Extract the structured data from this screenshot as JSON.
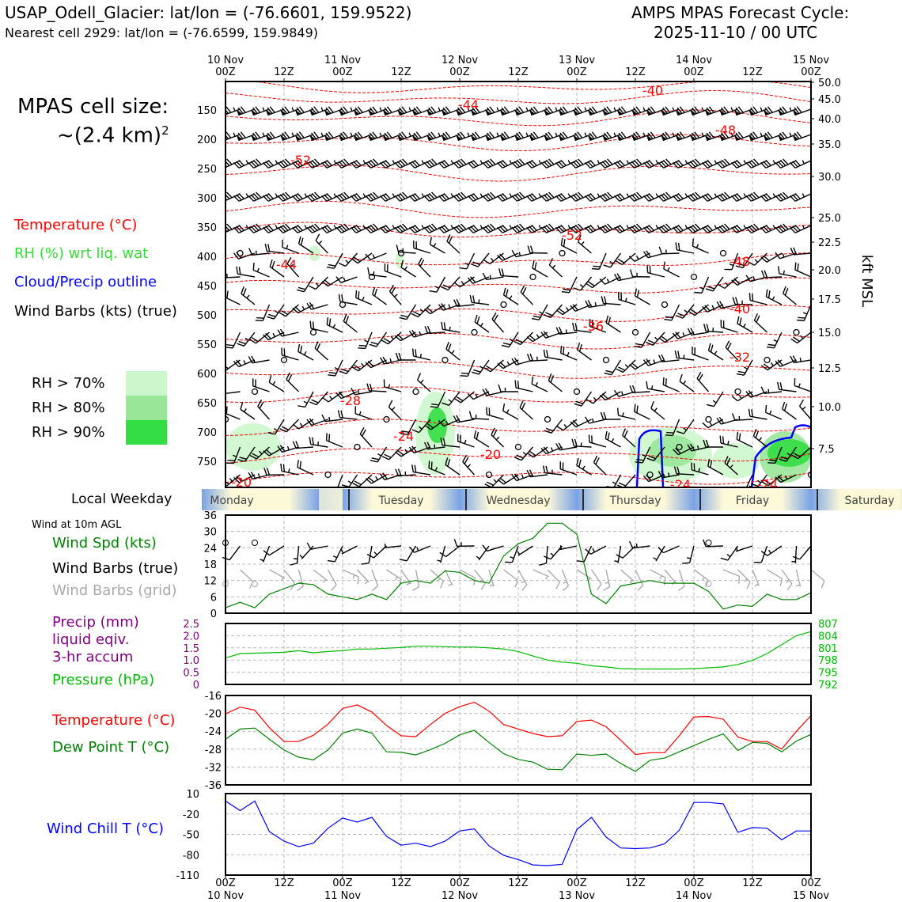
{
  "header": {
    "station": "USAP_Odell_Glacier: lat/lon = (-76.6601, 159.9522)",
    "nearest": "Nearest cell 2929: lat/lon = (-76.6599, 159.9849)",
    "forecast_title": "AMPS MPAS Forecast Cycle:",
    "forecast_cycle": "2025-11-10 / 00 UTC"
  },
  "cell_size": {
    "line1": "MPAS cell size:",
    "line2": "~(2.4 km)",
    "sup": "2"
  },
  "legend": {
    "temperature": "Temperature (°C)",
    "rh": "RH (%) wrt liq. wat",
    "cloud": "Cloud/Precip outline",
    "barbs": "Wind Barbs (kts) (true)",
    "rh70": "RH > 70%",
    "rh80": "RH > 80%",
    "rh90": "RH > 90%"
  },
  "colors": {
    "temperature": "#ff0000",
    "rh_label": "#33dd33",
    "cloud": "#0000ff",
    "rh70": "#ccf7cc",
    "rh80": "#99e699",
    "rh90": "#33dd44",
    "wind_spd": "#008000",
    "barb_grid": "#aaaaaa",
    "precip": "#800080",
    "pressure": "#00bb00",
    "dewpoint": "#008000",
    "windchill": "#0000ff"
  },
  "time_axis": {
    "top_dates": [
      "10 Nov",
      "11 Nov",
      "12 Nov",
      "13 Nov",
      "14 Nov",
      "15 Nov"
    ],
    "ticks": [
      "00Z",
      "12Z",
      "00Z",
      "12Z",
      "00Z",
      "12Z",
      "00Z",
      "12Z",
      "00Z",
      "12Z",
      "00Z"
    ]
  },
  "weekday": {
    "label": "Local Weekday",
    "days": [
      "Monday",
      "Tuesday",
      "Wednesday",
      "Thursday",
      "Friday",
      "Saturday"
    ]
  },
  "left_labels": {
    "wind_at": "Wind at 10m AGL",
    "wind_spd": "Wind Spd (kts)",
    "wind_barbs": "Wind Barbs (true)",
    "wind_barbs_grid": "Wind Barbs (grid)",
    "precip1": "Precip (mm)",
    "precip2": "liquid eqiv.",
    "precip3": "3-hr accum",
    "pressure": "Pressure (hPa)",
    "temperature": "Temperature (°C)",
    "dewpoint": "Dew Point T (°C)",
    "windchill": "Wind Chill T (°C)"
  },
  "chart_data": [
    {
      "type": "heatmap",
      "title": "",
      "ylabel_right": "kft MSL",
      "y_pressure_ticks": [
        "150",
        "200",
        "250",
        "300",
        "350",
        "400",
        "450",
        "500",
        "550",
        "600",
        "650",
        "700",
        "750"
      ],
      "y_kft_ticks": [
        "50.0",
        "45.0",
        "40.0",
        "35.0",
        "30.0",
        "25.0",
        "22.5",
        "20.0",
        "17.5",
        "15.0",
        "12.5",
        "10.0",
        "7.5"
      ],
      "temperature_contour_labels": [
        "-40",
        "-44",
        "-48",
        "-52",
        "-52",
        "-44",
        "-48",
        "-40",
        "-36",
        "-32",
        "-28",
        "-24",
        "-20",
        "-20",
        "-24",
        "-24"
      ]
    },
    {
      "type": "line",
      "name": "wind_speed",
      "ylim": [
        0,
        36
      ],
      "yticks": [
        "0",
        "6",
        "12",
        "18",
        "24",
        "30",
        "36"
      ],
      "x_hours": [
        0,
        3,
        6,
        9,
        12,
        15,
        18,
        21,
        24,
        27,
        30,
        33,
        36,
        39,
        42,
        45,
        48,
        51,
        54,
        57,
        60,
        63,
        66,
        69,
        72,
        75,
        78,
        81,
        84,
        87,
        90,
        93,
        96,
        99,
        102,
        105,
        108,
        111,
        114,
        117,
        120
      ],
      "values": [
        2,
        4,
        2,
        7,
        9,
        11,
        10.5,
        7,
        6,
        5,
        7,
        5,
        11,
        12,
        11,
        15.5,
        15,
        12,
        11,
        21,
        25.5,
        27.5,
        33,
        33,
        29,
        7,
        3.5,
        10,
        11,
        12,
        11,
        11,
        11,
        8,
        1.5,
        3,
        2.5,
        7,
        5,
        5,
        7.5
      ]
    },
    {
      "type": "line",
      "name": "precip_pressure",
      "precip_ylim": [
        0,
        2.5
      ],
      "precip_yticks": [
        "0",
        "0.5",
        "1.0",
        "1.5",
        "2.0",
        "2.5"
      ],
      "pressure_ylim": [
        792,
        807
      ],
      "pressure_yticks": [
        "792",
        "795",
        "798",
        "801",
        "804",
        "807"
      ],
      "pressure_unit": "(hPa)",
      "precip_values": [],
      "pressure_values": [
        798.5,
        799.6,
        799.7,
        799.8,
        799.9,
        800.3,
        799.8,
        800.1,
        800.3,
        800.7,
        800.7,
        800.9,
        801.1,
        801.4,
        801.4,
        801.3,
        801.2,
        801.2,
        801.0,
        800.7,
        800.1,
        799.0,
        798.0,
        797.5,
        797.2,
        796.6,
        796.3,
        795.9,
        795.8,
        795.8,
        795.8,
        795.8,
        795.9,
        796.1,
        796.3,
        796.9,
        797.9,
        799.6,
        801.8,
        804.0,
        805.0
      ]
    },
    {
      "type": "line",
      "name": "temperature_dewpoint",
      "ylim": [
        -36,
        -16
      ],
      "yticks": [
        "-36",
        "-32",
        "-28",
        "-24",
        "-20",
        "-16"
      ],
      "temperature": [
        -20.1,
        -18.6,
        -19.3,
        -23.2,
        -26.3,
        -26.3,
        -24.9,
        -22.4,
        -18.9,
        -18.1,
        -19.7,
        -22.7,
        -25.0,
        -25.2,
        -22.5,
        -20.0,
        -18.5,
        -17.5,
        -19.5,
        -22.5,
        -23.5,
        -24.5,
        -25.2,
        -25.0,
        -21.8,
        -21.5,
        -23.0,
        -26.0,
        -29.2,
        -28.8,
        -28.8,
        -25.0,
        -20.8,
        -20.7,
        -21.3,
        -25.3,
        -26.3,
        -26.3,
        -28.0,
        -24.0,
        -20.5
      ],
      "dewpoint": [
        -25.8,
        -23.5,
        -23.3,
        -25.8,
        -28.2,
        -29.8,
        -30.4,
        -28.2,
        -24.4,
        -23.5,
        -24.4,
        -28.6,
        -28.7,
        -29.3,
        -28.1,
        -26.7,
        -24.8,
        -23.8,
        -26.5,
        -29.0,
        -30.3,
        -30.9,
        -32.5,
        -32.6,
        -29.1,
        -29.4,
        -29.1,
        -31.2,
        -33.0,
        -30.5,
        -30.0,
        -28.6,
        -27.2,
        -25.8,
        -24.6,
        -28.3,
        -26.5,
        -26.7,
        -28.6,
        -26.2,
        -24.7
      ]
    },
    {
      "type": "line",
      "name": "wind_chill",
      "ylim": [
        -110,
        10
      ],
      "yticks": [
        "-110",
        "-80",
        "-50",
        "-20",
        "10"
      ],
      "values": [
        -1,
        -15,
        -1,
        -46,
        -60,
        -68,
        -63,
        -41,
        -26,
        -32,
        -25,
        -53,
        -66,
        -63,
        -68,
        -60,
        -45,
        -42,
        -67,
        -81,
        -87,
        -95,
        -96,
        -94,
        -43,
        -25,
        -54,
        -70,
        -71,
        -70,
        -64,
        -44,
        -3,
        -3,
        -5,
        -47,
        -40,
        -41,
        -58,
        -45,
        -45
      ]
    }
  ],
  "barb_grid": {
    "rows": [
      [
        138,
        "strong"
      ],
      [
        170,
        "strong"
      ],
      [
        203,
        "mid"
      ],
      [
        245,
        "mid"
      ],
      [
        285,
        "mid"
      ],
      [
        320,
        "weak"
      ],
      [
        350,
        "weak"
      ],
      [
        385,
        "weak"
      ],
      [
        420,
        "weak"
      ],
      [
        455,
        "weak"
      ],
      [
        495,
        "weak"
      ],
      [
        530,
        "weak"
      ],
      [
        565,
        "weak"
      ],
      [
        600,
        "weak"
      ]
    ]
  }
}
